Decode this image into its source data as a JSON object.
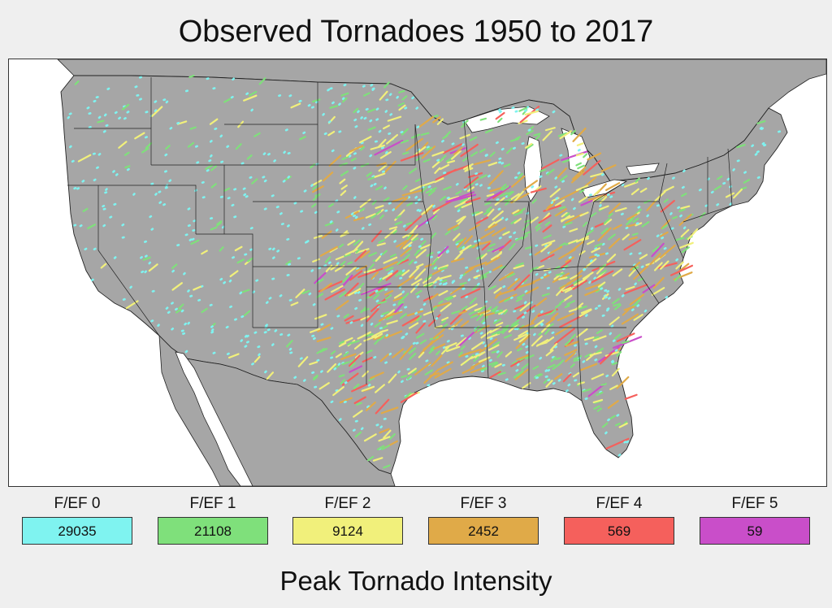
{
  "title": "Observed Tornadoes 1950 to 2017",
  "legend_title": "Peak Tornado Intensity",
  "map": {
    "region": "Contiguous United States",
    "land_color": "#a6a6a6",
    "water_color": "#ffffff",
    "state_border_color": "#222222"
  },
  "legend": [
    {
      "label": "F/EF 0",
      "count": "29035",
      "color": "#7ff3f0"
    },
    {
      "label": "F/EF 1",
      "count": "21108",
      "color": "#7fe07b"
    },
    {
      "label": "F/EF 2",
      "count": "9124",
      "color": "#f1f07b"
    },
    {
      "label": "F/EF 3",
      "count": "2452",
      "color": "#e0aa48"
    },
    {
      "label": "F/EF 4",
      "count": "569",
      "color": "#f5605c"
    },
    {
      "label": "F/EF 5",
      "count": "59",
      "color": "#c94ec9"
    }
  ]
}
